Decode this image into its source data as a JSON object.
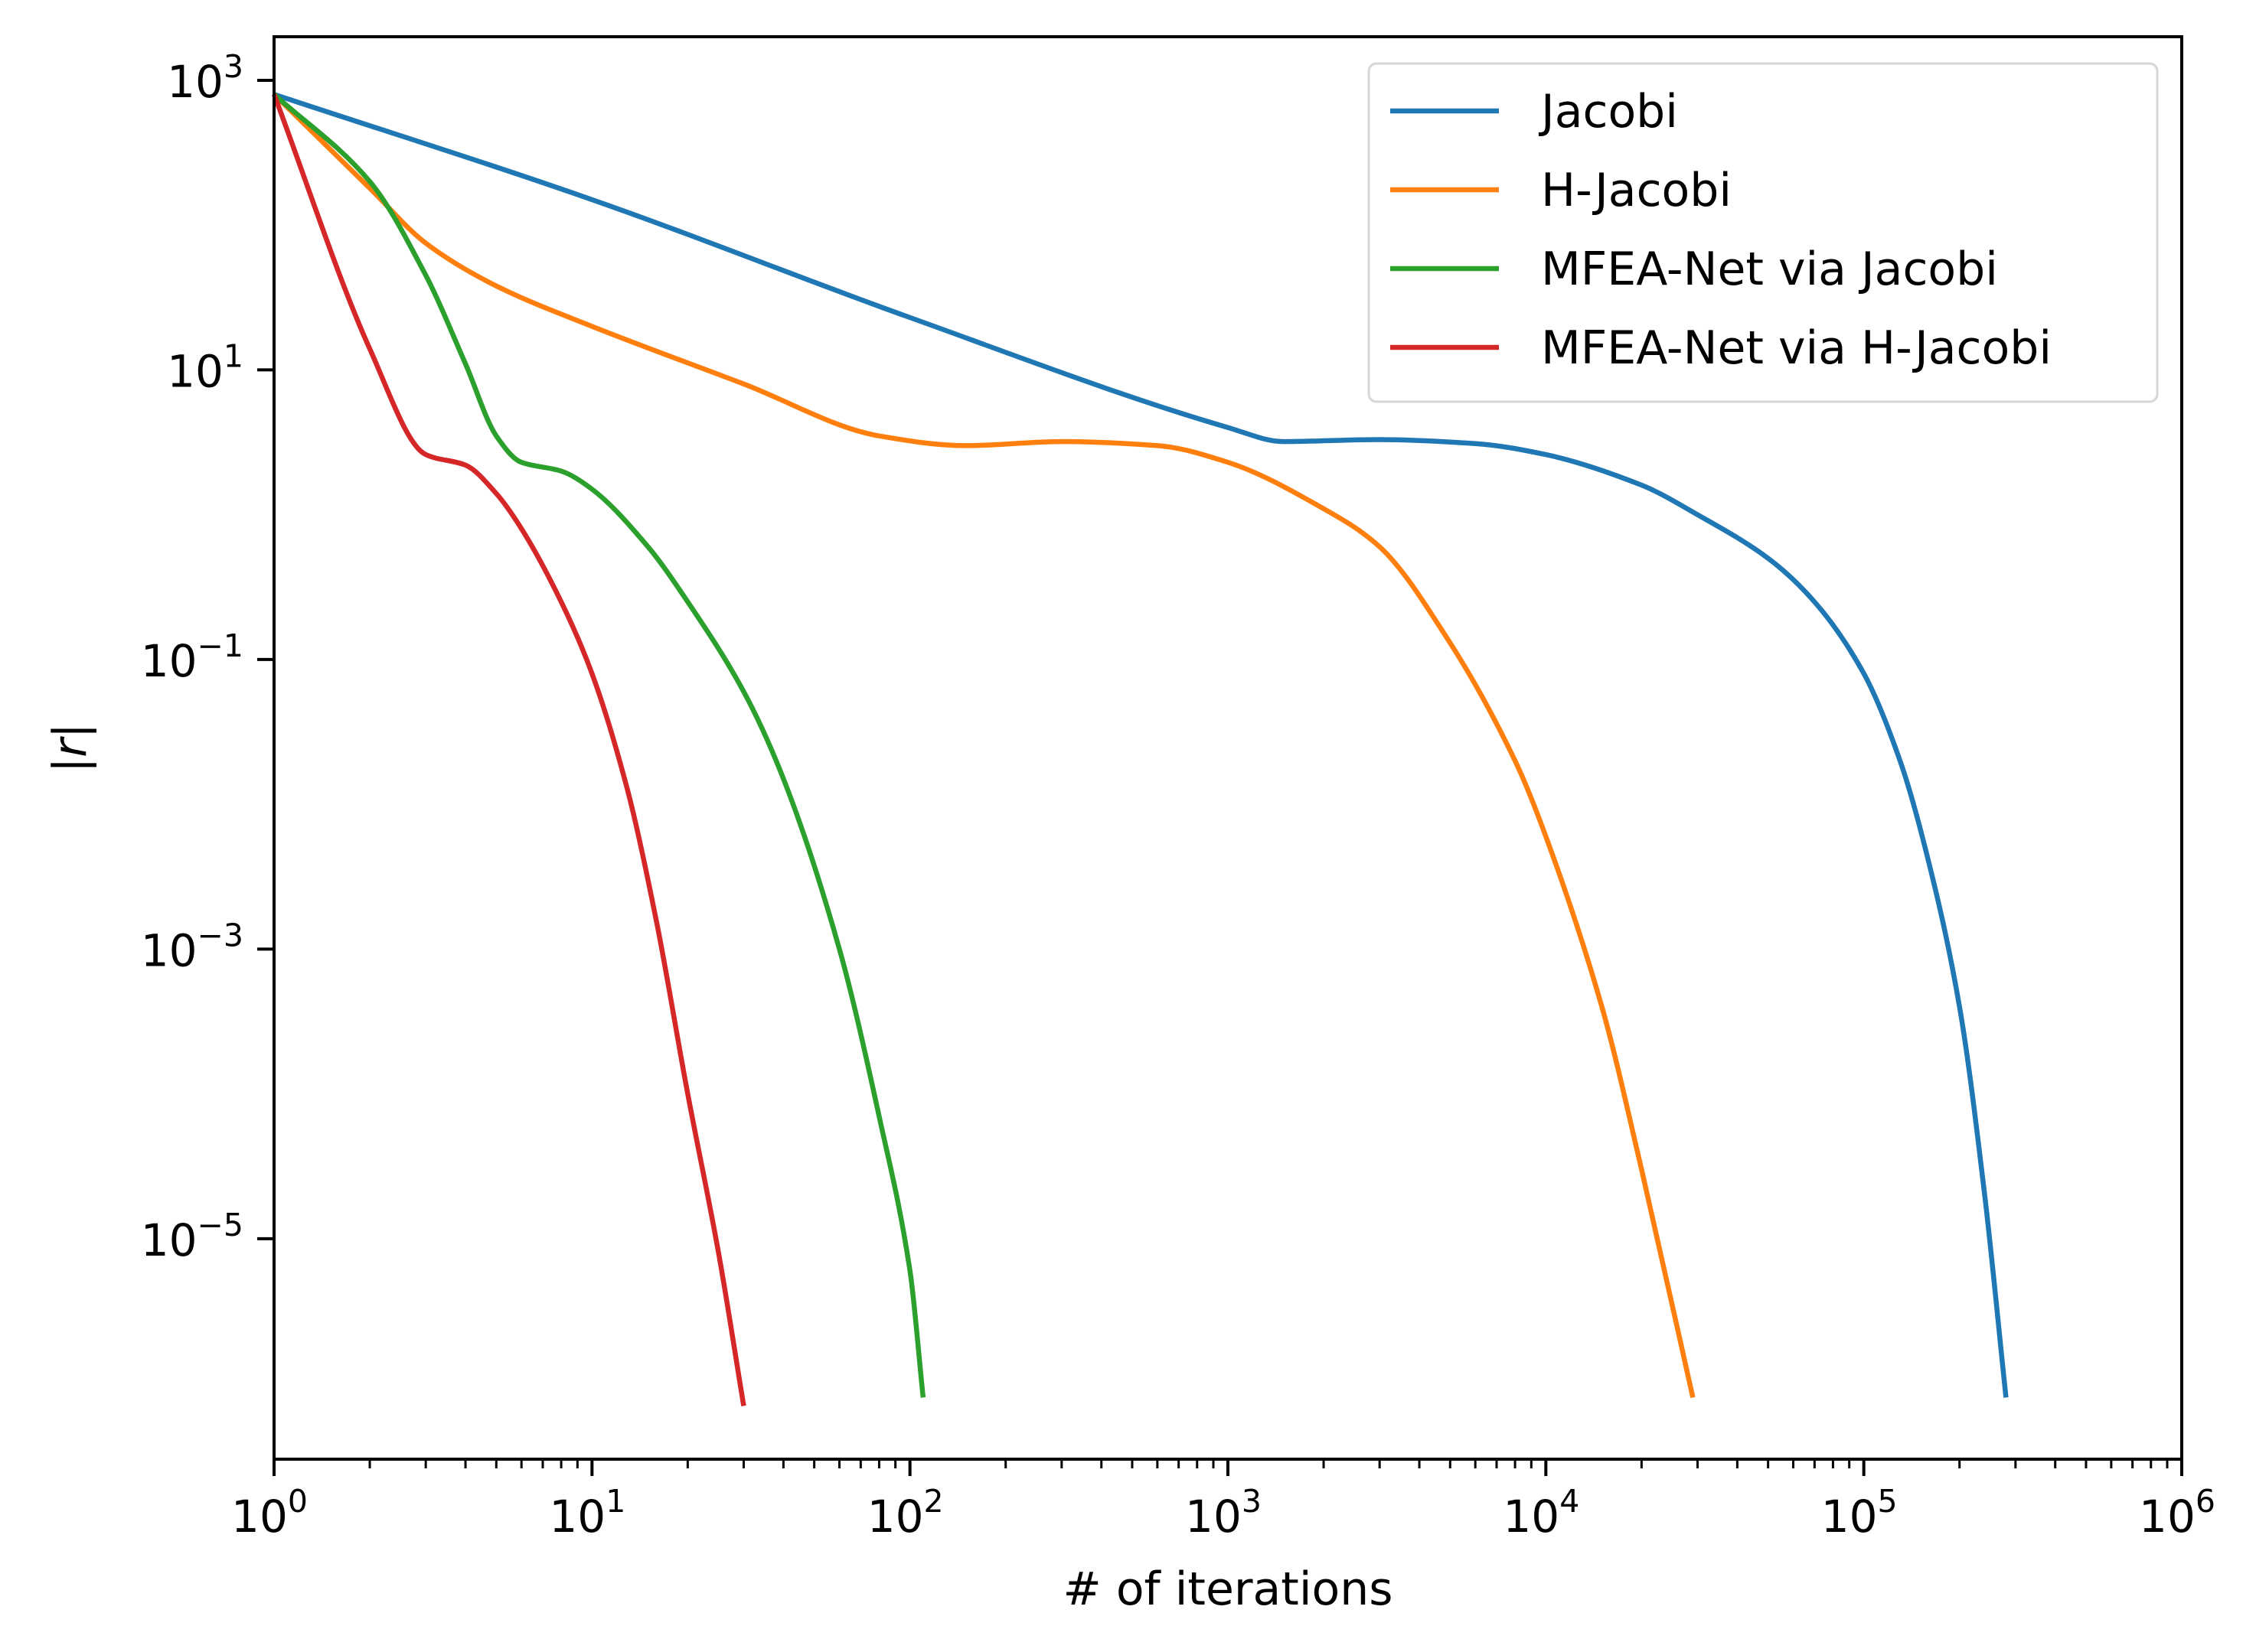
{
  "chart_data": {
    "type": "line",
    "title": "",
    "xlabel": "# of iterations",
    "ylabel": "|r|",
    "x_scale": "log",
    "y_scale": "log",
    "xlim": [
      1,
      1000000
    ],
    "ylim": [
      3e-07,
      2000
    ],
    "grid": false,
    "legend_position": "top-right",
    "x_ticks": [
      {
        "base": "10",
        "exp": "0"
      },
      {
        "base": "10",
        "exp": "1"
      },
      {
        "base": "10",
        "exp": "2"
      },
      {
        "base": "10",
        "exp": "3"
      },
      {
        "base": "10",
        "exp": "4"
      },
      {
        "base": "10",
        "exp": "5"
      },
      {
        "base": "10",
        "exp": "6"
      }
    ],
    "y_ticks": [
      {
        "base": "10",
        "exp": "3"
      },
      {
        "base": "10",
        "exp": "1"
      },
      {
        "base": "10",
        "exp": "−1"
      },
      {
        "base": "10",
        "exp": "−3"
      },
      {
        "base": "10",
        "exp": "−5"
      }
    ],
    "series": [
      {
        "name": "Jacobi",
        "color": "#1f77b4",
        "points": [
          [
            1,
            800
          ],
          [
            10,
            150
          ],
          [
            100,
            23
          ],
          [
            1000,
            4.0
          ],
          [
            1500,
            3.2
          ],
          [
            3000,
            3.3
          ],
          [
            6000,
            3.1
          ],
          [
            10000,
            2.6
          ],
          [
            20000,
            1.6
          ],
          [
            30000,
            1.0
          ],
          [
            50000,
            0.5
          ],
          [
            70000,
            0.25
          ],
          [
            100000,
            0.08
          ],
          [
            130000,
            0.02
          ],
          [
            160000,
            0.004
          ],
          [
            200000,
            0.0004
          ],
          [
            240000,
            2e-05
          ],
          [
            280000,
            8e-07
          ]
        ]
      },
      {
        "name": "H-Jacobi",
        "color": "#ff7f0e",
        "points": [
          [
            1,
            800
          ],
          [
            2,
            180
          ],
          [
            3,
            75
          ],
          [
            5,
            38
          ],
          [
            10,
            20
          ],
          [
            30,
            8
          ],
          [
            80,
            3.5
          ],
          [
            150,
            3.0
          ],
          [
            300,
            3.2
          ],
          [
            600,
            3.0
          ],
          [
            1000,
            2.3
          ],
          [
            2000,
            1.1
          ],
          [
            3000,
            0.6
          ],
          [
            5000,
            0.13
          ],
          [
            8000,
            0.02
          ],
          [
            10000,
            0.006
          ],
          [
            15000,
            0.0004
          ],
          [
            20000,
            3e-05
          ],
          [
            29000,
            8e-07
          ]
        ]
      },
      {
        "name": "MFEA-Net via Jacobi",
        "color": "#2ca02c",
        "points": [
          [
            1,
            800
          ],
          [
            2,
            200
          ],
          [
            3,
            45
          ],
          [
            4,
            11
          ],
          [
            5,
            3.5
          ],
          [
            6,
            2.3
          ],
          [
            8,
            2.0
          ],
          [
            10,
            1.5
          ],
          [
            15,
            0.6
          ],
          [
            20,
            0.25
          ],
          [
            30,
            0.06
          ],
          [
            40,
            0.015
          ],
          [
            60,
            0.001
          ],
          [
            80,
            7e-05
          ],
          [
            100,
            6e-06
          ],
          [
            110,
            8e-07
          ]
        ]
      },
      {
        "name": "MFEA-Net via H-Jacobi",
        "color": "#d62728",
        "points": [
          [
            1,
            800
          ],
          [
            2,
            14
          ],
          [
            3,
            2.6
          ],
          [
            4,
            2.2
          ],
          [
            5,
            1.4
          ],
          [
            6,
            0.8
          ],
          [
            8,
            0.25
          ],
          [
            10,
            0.08
          ],
          [
            13,
            0.012
          ],
          [
            16,
            0.0015
          ],
          [
            20,
            0.0001
          ],
          [
            25,
            8e-06
          ],
          [
            30,
            7e-07
          ]
        ]
      }
    ]
  }
}
